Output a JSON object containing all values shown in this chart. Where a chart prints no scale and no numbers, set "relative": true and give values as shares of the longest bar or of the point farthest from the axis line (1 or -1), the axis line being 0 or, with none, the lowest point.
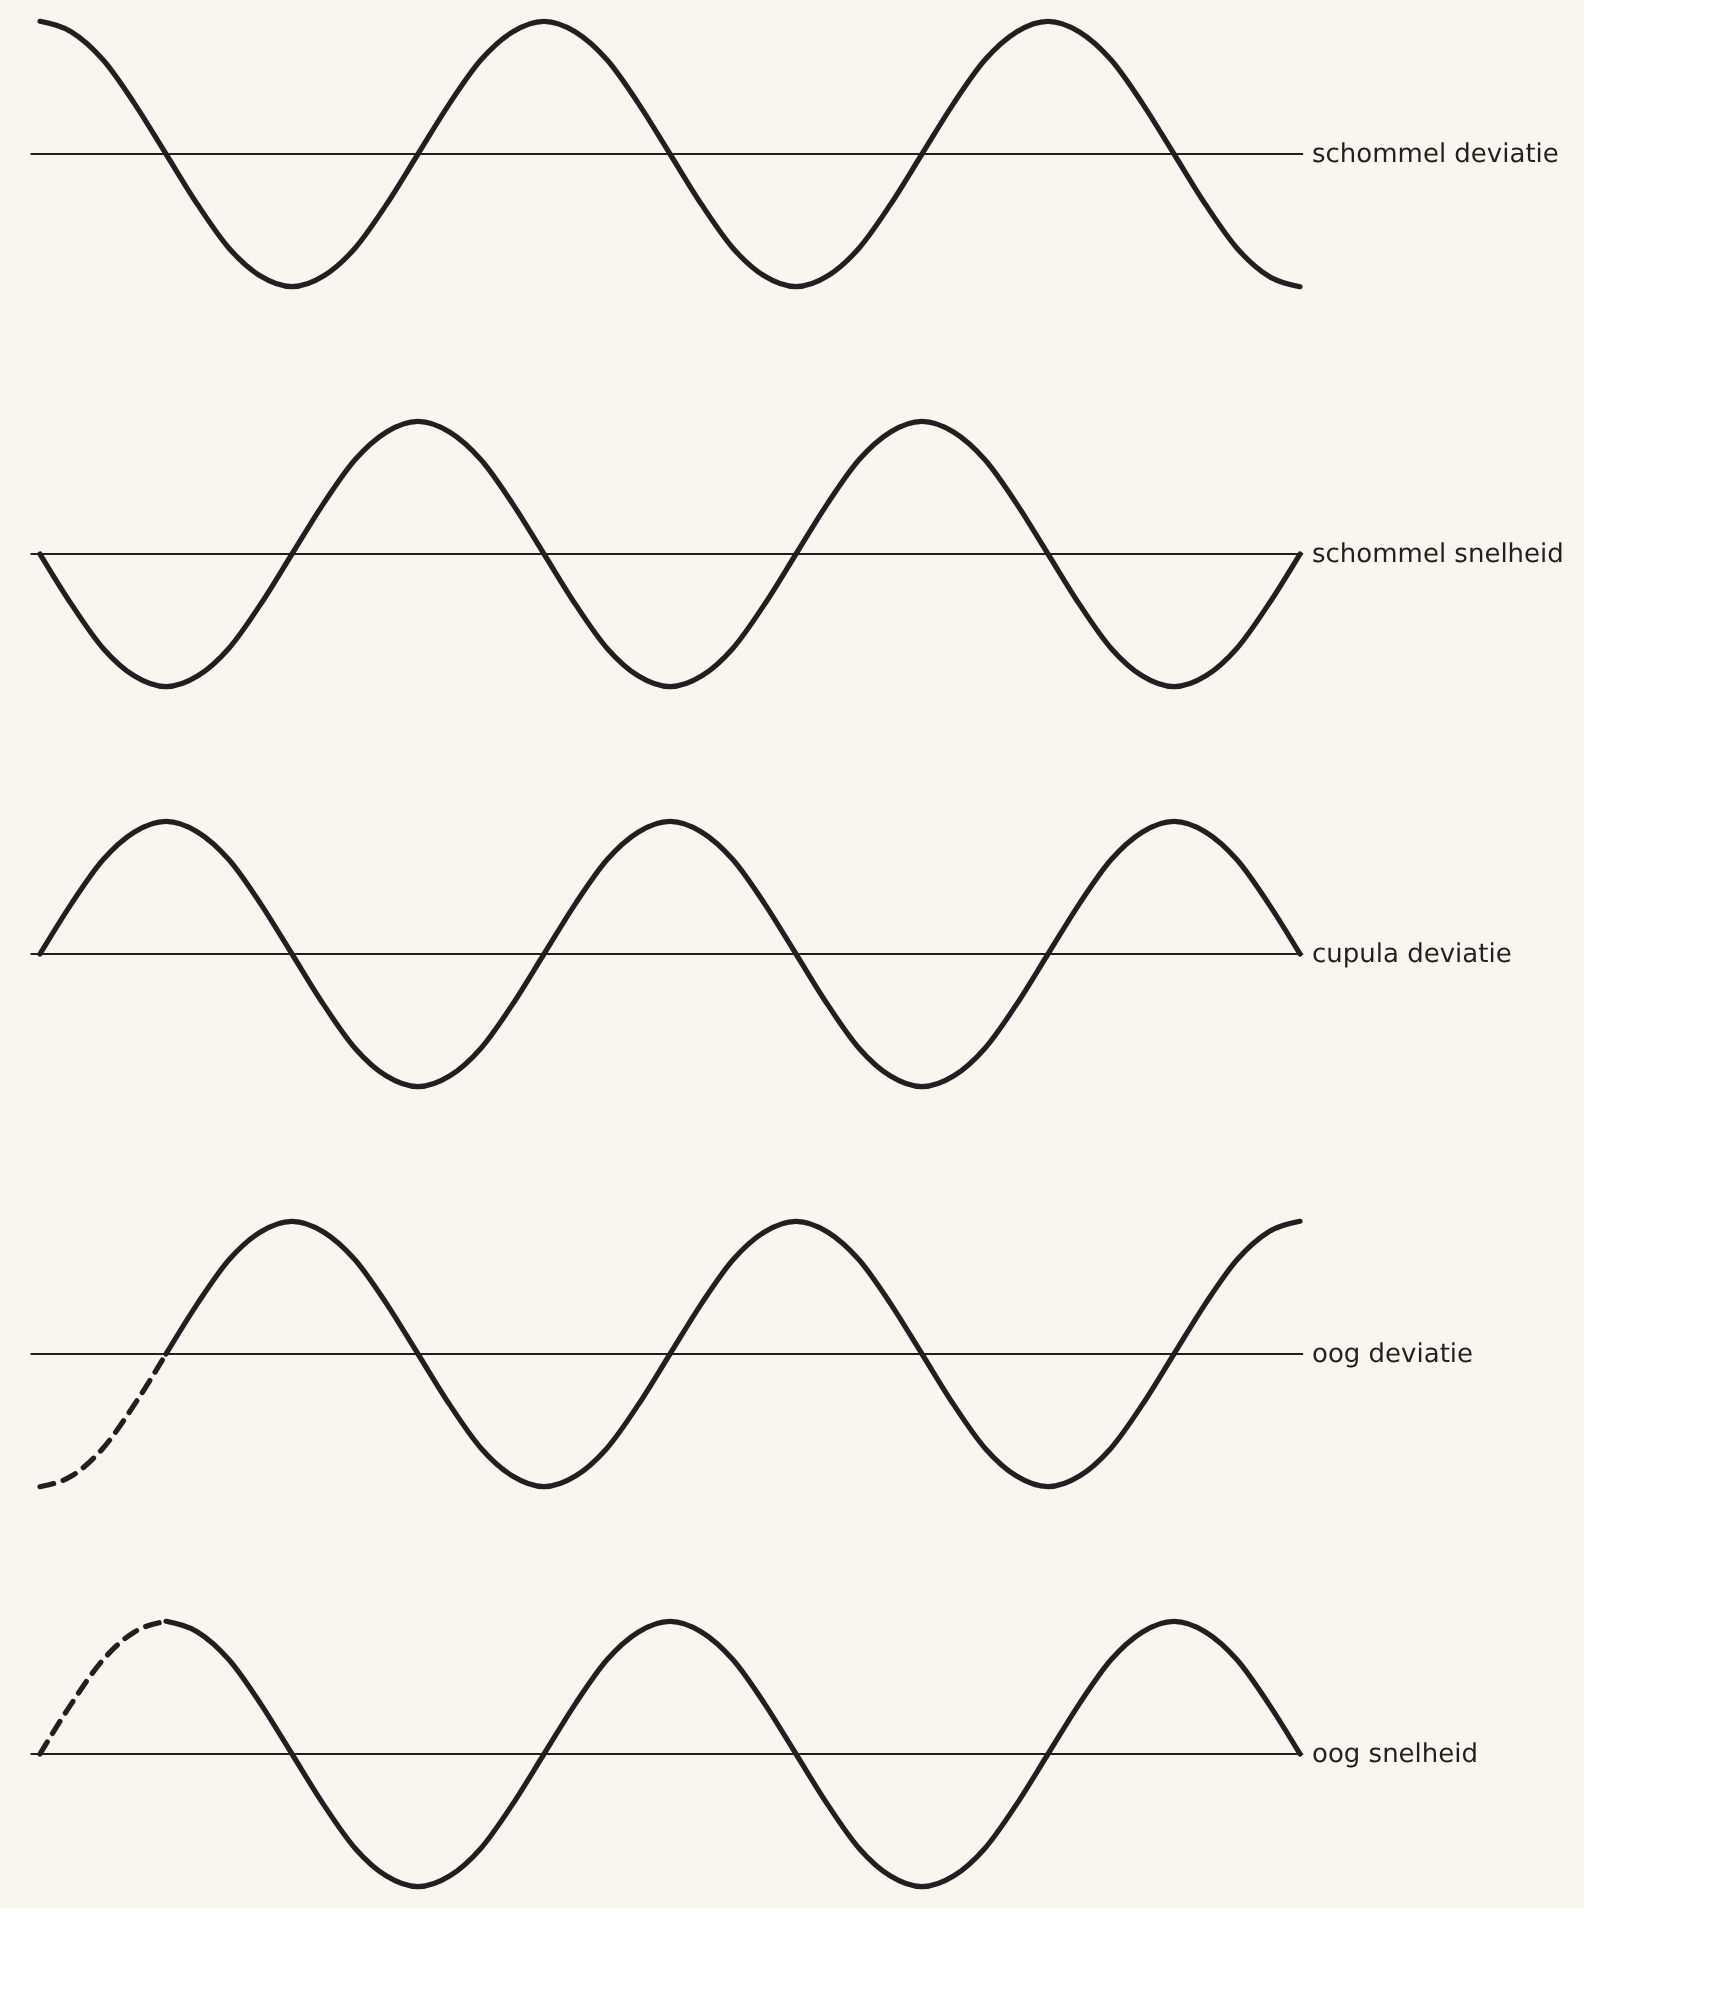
{
  "chart_data": [
    {
      "type": "line",
      "relative": true,
      "categories": [
        null,
        null,
        null,
        null,
        null,
        null,
        null,
        null,
        null,
        null,
        null,
        null,
        null,
        null,
        null,
        null,
        null,
        null,
        null,
        null,
        null,
        null,
        null,
        null,
        null,
        null,
        null,
        null,
        null,
        null,
        null,
        null,
        null,
        null,
        null,
        null,
        null,
        null,
        null,
        null,
        null
      ],
      "series": [
        {
          "name": "schommel deviatie",
          "color": "#231f20",
          "line_style": "solid",
          "values": [
            1,
            0.92,
            0.71,
            0.38,
            0,
            -0.38,
            -0.71,
            -0.92,
            -1,
            -0.92,
            -0.71,
            -0.38,
            0,
            0.38,
            0.71,
            0.92,
            1,
            0.92,
            0.71,
            0.38,
            0,
            -0.38,
            -0.71,
            -0.92,
            -1,
            -0.92,
            -0.71,
            -0.38,
            0,
            0.38,
            0.71,
            0.92,
            1,
            0.92,
            0.71,
            0.38,
            0,
            -0.38,
            -0.71,
            -0.92,
            -1
          ]
        }
      ]
    },
    {
      "type": "line",
      "relative": true,
      "categories": [
        null,
        null,
        null,
        null,
        null,
        null,
        null,
        null,
        null,
        null,
        null,
        null,
        null,
        null,
        null,
        null,
        null,
        null,
        null,
        null,
        null,
        null,
        null,
        null,
        null,
        null,
        null,
        null,
        null,
        null,
        null,
        null,
        null,
        null,
        null,
        null,
        null,
        null,
        null,
        null,
        null
      ],
      "series": [
        {
          "name": "schommel snelheid",
          "color": "#231f20",
          "line_style": "solid",
          "values": [
            0,
            -0.38,
            -0.71,
            -0.92,
            -1,
            -0.92,
            -0.71,
            -0.38,
            0,
            0.38,
            0.71,
            0.92,
            1,
            0.92,
            0.71,
            0.38,
            0,
            -0.38,
            -0.71,
            -0.92,
            -1,
            -0.92,
            -0.71,
            -0.38,
            0,
            0.38,
            0.71,
            0.92,
            1,
            0.92,
            0.71,
            0.38,
            0,
            -0.38,
            -0.71,
            -0.92,
            -1,
            -0.92,
            -0.71,
            -0.38,
            0
          ]
        }
      ]
    },
    {
      "type": "line",
      "relative": true,
      "categories": [
        null,
        null,
        null,
        null,
        null,
        null,
        null,
        null,
        null,
        null,
        null,
        null,
        null,
        null,
        null,
        null,
        null,
        null,
        null,
        null,
        null,
        null,
        null,
        null,
        null,
        null,
        null,
        null,
        null,
        null,
        null,
        null,
        null,
        null,
        null,
        null,
        null,
        null,
        null,
        null,
        null
      ],
      "series": [
        {
          "name": "cupula deviatie",
          "color": "#231f20",
          "line_style": "solid",
          "values": [
            0,
            0.38,
            0.71,
            0.92,
            1,
            0.92,
            0.71,
            0.38,
            0,
            -0.38,
            -0.71,
            -0.92,
            -1,
            -0.92,
            -0.71,
            -0.38,
            0,
            0.38,
            0.71,
            0.92,
            1,
            0.92,
            0.71,
            0.38,
            0,
            -0.38,
            -0.71,
            -0.92,
            -1,
            -0.92,
            -0.71,
            -0.38,
            0,
            0.38,
            0.71,
            0.92,
            1,
            0.92,
            0.71,
            0.38,
            0
          ]
        }
      ]
    },
    {
      "type": "line",
      "relative": true,
      "categories": [
        null,
        null,
        null,
        null,
        null,
        null,
        null,
        null,
        null,
        null,
        null,
        null,
        null,
        null,
        null,
        null,
        null,
        null,
        null,
        null,
        null,
        null,
        null,
        null,
        null,
        null,
        null,
        null,
        null,
        null,
        null,
        null,
        null,
        null,
        null,
        null,
        null,
        null,
        null,
        null,
        null
      ],
      "series": [
        {
          "color": "#231f20",
          "line_style": "dashed",
          "values": [
            -1,
            -0.92,
            -0.71,
            -0.38,
            0,
            null,
            null,
            null,
            null,
            null,
            null,
            null,
            null,
            null,
            null,
            null,
            null,
            null,
            null,
            null,
            null,
            null,
            null,
            null,
            null,
            null,
            null,
            null,
            null,
            null,
            null,
            null,
            null,
            null,
            null,
            null,
            null,
            null,
            null,
            null,
            null
          ]
        },
        {
          "name": "oog deviatie",
          "color": "#231f20",
          "line_style": "solid",
          "values": [
            null,
            null,
            null,
            null,
            0,
            0.38,
            0.71,
            0.92,
            1,
            0.92,
            0.71,
            0.38,
            0,
            -0.38,
            -0.71,
            -0.92,
            -1,
            -0.92,
            -0.71,
            -0.38,
            0,
            0.38,
            0.71,
            0.92,
            1,
            0.92,
            0.71,
            0.38,
            0,
            -0.38,
            -0.71,
            -0.92,
            -1,
            -0.92,
            -0.71,
            -0.38,
            0,
            0.38,
            0.71,
            0.92,
            1
          ]
        }
      ]
    },
    {
      "type": "line",
      "relative": true,
      "categories": [
        null,
        null,
        null,
        null,
        null,
        null,
        null,
        null,
        null,
        null,
        null,
        null,
        null,
        null,
        null,
        null,
        null,
        null,
        null,
        null,
        null,
        null,
        null,
        null,
        null,
        null,
        null,
        null,
        null,
        null,
        null,
        null,
        null,
        null,
        null,
        null,
        null,
        null,
        null,
        null,
        null
      ],
      "series": [
        {
          "color": "#231f20",
          "line_style": "dashed",
          "values": [
            0,
            0.38,
            0.71,
            0.92,
            1,
            null,
            null,
            null,
            null,
            null,
            null,
            null,
            null,
            null,
            null,
            null,
            null,
            null,
            null,
            null,
            null,
            null,
            null,
            null,
            null,
            null,
            null,
            null,
            null,
            null,
            null,
            null,
            null,
            null,
            null,
            null,
            null,
            null,
            null,
            null,
            null
          ]
        },
        {
          "name": "oog snelheid",
          "color": "#231f20",
          "line_style": "solid",
          "values": [
            null,
            null,
            null,
            null,
            1,
            0.92,
            0.71,
            0.38,
            0,
            -0.38,
            -0.71,
            -0.92,
            -1,
            -0.92,
            -0.71,
            -0.38,
            0,
            0.38,
            0.71,
            0.92,
            1,
            0.92,
            0.71,
            0.38,
            0,
            -0.38,
            -0.71,
            -0.92,
            -1,
            -0.92,
            -0.71,
            -0.38,
            0,
            0.38,
            0.71,
            0.92,
            1,
            0.92,
            0.71,
            0.38,
            0
          ]
        }
      ]
    }
  ]
}
